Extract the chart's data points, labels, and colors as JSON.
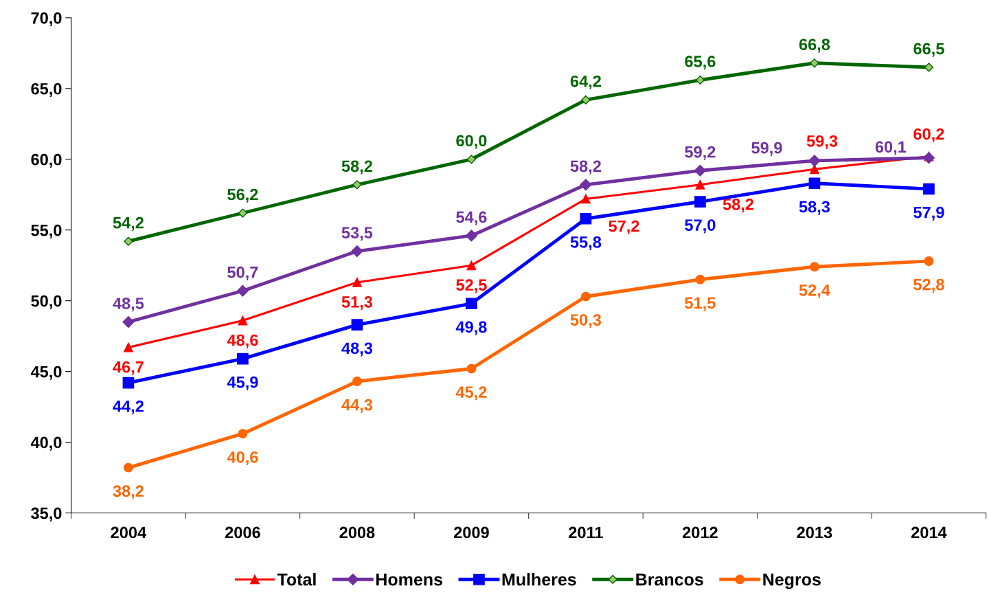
{
  "chart_data": {
    "type": "line",
    "categories": [
      "2004",
      "2006",
      "2008",
      "2009",
      "2011",
      "2012",
      "2013",
      "2014"
    ],
    "series": [
      {
        "name": "Total",
        "color": "#ff0000",
        "marker": "triangle",
        "values": [
          46.7,
          48.6,
          51.3,
          52.5,
          57.2,
          58.2,
          59.3,
          60.2
        ],
        "value_labels": [
          "46,7",
          "48,6",
          "51,3",
          "52,5",
          "57,2",
          "58,2",
          "59,3",
          "60,2"
        ]
      },
      {
        "name": "Homens",
        "color": "#7030a0",
        "marker": "diamond",
        "values": [
          48.5,
          50.7,
          53.5,
          54.6,
          58.2,
          59.2,
          59.9,
          60.1
        ],
        "value_labels": [
          "48,5",
          "50,7",
          "53,5",
          "54,6",
          "58,2",
          "59,2",
          "59,9",
          "60,1"
        ]
      },
      {
        "name": "Mulheres",
        "color": "#0000ff",
        "marker": "square",
        "values": [
          44.2,
          45.9,
          48.3,
          49.8,
          55.8,
          57.0,
          58.3,
          57.9
        ],
        "value_labels": [
          "44,2",
          "45,9",
          "48,3",
          "49,8",
          "55,8",
          "57,0",
          "58,3",
          "57,9"
        ]
      },
      {
        "name": "Brancos",
        "color": "#006600",
        "marker": "diamond",
        "values": [
          54.2,
          56.2,
          58.2,
          60.0,
          64.2,
          65.6,
          66.8,
          66.5
        ],
        "value_labels": [
          "54,2",
          "56,2",
          "58,2",
          "60,0",
          "64,2",
          "65,6",
          "66,8",
          "66,5"
        ]
      },
      {
        "name": "Negros",
        "color": "#ff6600",
        "marker": "circle",
        "values": [
          38.2,
          40.6,
          44.3,
          45.2,
          50.3,
          51.5,
          52.4,
          52.8
        ],
        "value_labels": [
          "38,2",
          "40,6",
          "44,3",
          "45,2",
          "50,3",
          "51,5",
          "52,4",
          "52,8"
        ]
      }
    ],
    "ylim": [
      35,
      70
    ],
    "yticks": [
      {
        "value": 35,
        "label": "35,0"
      },
      {
        "value": 40,
        "label": "40,0"
      },
      {
        "value": 45,
        "label": "45,0"
      },
      {
        "value": 50,
        "label": "50,0"
      },
      {
        "value": 55,
        "label": "55,0"
      },
      {
        "value": 60,
        "label": "60,0"
      },
      {
        "value": 65,
        "label": "65,0"
      },
      {
        "value": 70,
        "label": "70,0"
      }
    ],
    "grid": false,
    "legend": "bottom",
    "line_style": "solid"
  }
}
